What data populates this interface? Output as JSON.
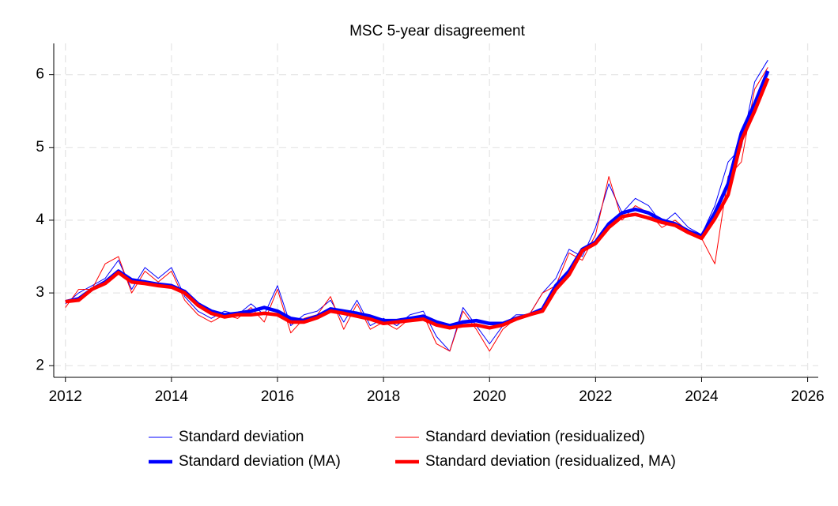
{
  "chart_data": {
    "type": "line",
    "title": "MSC 5-year disagreement",
    "x": [
      2012,
      2012.25,
      2012.5,
      2012.75,
      2013,
      2013.25,
      2013.5,
      2013.75,
      2014,
      2014.25,
      2014.5,
      2014.75,
      2015,
      2015.25,
      2015.5,
      2015.75,
      2016,
      2016.25,
      2016.5,
      2016.75,
      2017,
      2017.25,
      2017.5,
      2017.75,
      2018,
      2018.25,
      2018.5,
      2018.75,
      2019,
      2019.25,
      2019.5,
      2019.75,
      2020,
      2020.25,
      2020.5,
      2020.75,
      2021,
      2021.25,
      2021.5,
      2021.75,
      2022,
      2022.25,
      2022.5,
      2022.75,
      2023,
      2023.25,
      2023.5,
      2023.75,
      2024,
      2024.25,
      2024.5,
      2024.75,
      2025,
      2025.25
    ],
    "series": [
      {
        "name": "Standard deviation",
        "color": "#0000ff",
        "width": 1,
        "values": [
          2.85,
          3.0,
          3.1,
          3.2,
          3.45,
          3.05,
          3.35,
          3.2,
          3.35,
          2.95,
          2.75,
          2.65,
          2.75,
          2.7,
          2.85,
          2.7,
          3.1,
          2.55,
          2.7,
          2.75,
          2.9,
          2.6,
          2.9,
          2.55,
          2.65,
          2.55,
          2.7,
          2.75,
          2.4,
          2.2,
          2.8,
          2.55,
          2.3,
          2.55,
          2.7,
          2.7,
          3.0,
          3.2,
          3.6,
          3.5,
          3.9,
          4.5,
          4.1,
          4.3,
          4.2,
          3.95,
          4.1,
          3.9,
          3.8,
          4.2,
          4.8,
          5.0,
          5.9,
          6.2
        ]
      },
      {
        "name": "Standard deviation (residualized)",
        "color": "#ff0000",
        "width": 1,
        "values": [
          2.8,
          3.05,
          3.05,
          3.4,
          3.5,
          3.0,
          3.3,
          3.15,
          3.3,
          2.9,
          2.7,
          2.6,
          2.7,
          2.65,
          2.8,
          2.6,
          3.05,
          2.45,
          2.65,
          2.7,
          2.95,
          2.5,
          2.85,
          2.5,
          2.6,
          2.5,
          2.65,
          2.7,
          2.3,
          2.2,
          2.75,
          2.5,
          2.2,
          2.5,
          2.65,
          2.7,
          3.0,
          3.1,
          3.55,
          3.45,
          3.8,
          4.6,
          4.0,
          4.2,
          4.1,
          3.9,
          4.0,
          3.85,
          3.75,
          3.4,
          4.6,
          4.8,
          5.8,
          6.1
        ]
      },
      {
        "name": "Standard deviation (MA)",
        "color": "#0000ff",
        "width": 4.5,
        "values": [
          2.88,
          2.92,
          3.05,
          3.15,
          3.3,
          3.18,
          3.15,
          3.12,
          3.1,
          3.02,
          2.85,
          2.75,
          2.7,
          2.72,
          2.75,
          2.8,
          2.75,
          2.65,
          2.62,
          2.68,
          2.78,
          2.75,
          2.72,
          2.68,
          2.62,
          2.62,
          2.65,
          2.68,
          2.6,
          2.55,
          2.6,
          2.62,
          2.58,
          2.58,
          2.65,
          2.7,
          2.78,
          3.1,
          3.3,
          3.6,
          3.7,
          3.95,
          4.1,
          4.15,
          4.1,
          4.0,
          3.95,
          3.85,
          3.78,
          4.1,
          4.5,
          5.2,
          5.6,
          6.05
        ]
      },
      {
        "name": "Standard deviation (residualized, MA)",
        "color": "#ff0000",
        "width": 4.5,
        "values": [
          2.88,
          2.9,
          3.05,
          3.13,
          3.28,
          3.15,
          3.13,
          3.1,
          3.08,
          3.0,
          2.83,
          2.72,
          2.67,
          2.7,
          2.7,
          2.72,
          2.7,
          2.6,
          2.6,
          2.66,
          2.75,
          2.72,
          2.68,
          2.64,
          2.58,
          2.6,
          2.62,
          2.64,
          2.56,
          2.52,
          2.55,
          2.56,
          2.52,
          2.56,
          2.64,
          2.7,
          2.75,
          3.05,
          3.25,
          3.58,
          3.68,
          3.9,
          4.05,
          4.08,
          4.03,
          3.97,
          3.93,
          3.83,
          3.75,
          4.02,
          4.35,
          5.1,
          5.5,
          5.95
        ]
      }
    ],
    "xlim": [
      2011.78,
      2026.2
    ],
    "xticks": [
      2012,
      2014,
      2016,
      2018,
      2020,
      2022,
      2024,
      2026
    ],
    "ylim": [
      1.84,
      6.43
    ],
    "yticks": [
      2,
      3,
      4,
      5,
      6
    ],
    "grid": true
  }
}
